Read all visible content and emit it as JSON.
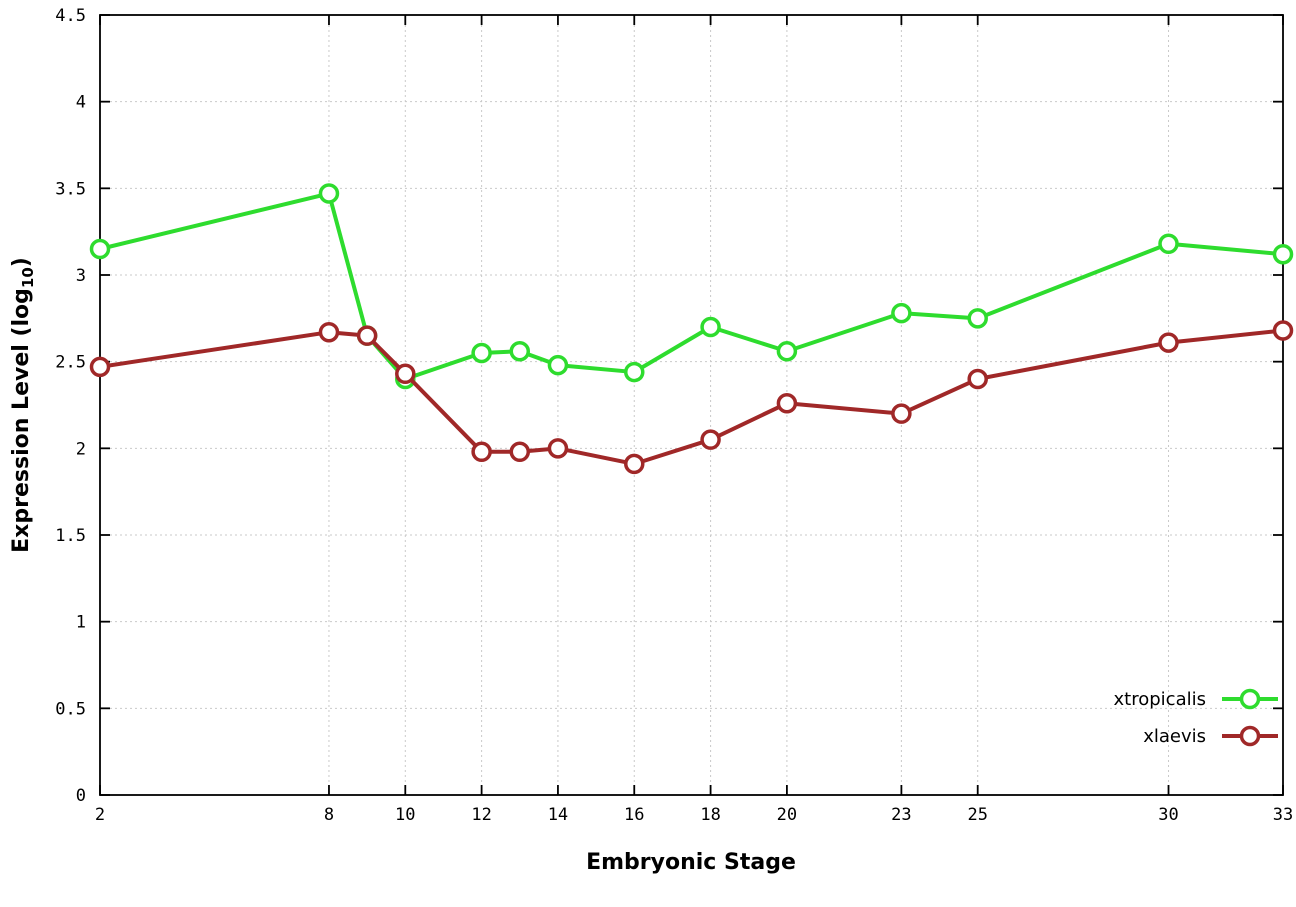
{
  "chart_data": {
    "type": "line",
    "title": "",
    "xlabel": "Embryonic Stage",
    "ylabel": "Expression Level (log10)",
    "ylabel_parts": {
      "prefix": "Expression Level (log",
      "sub": "10",
      "suffix": ")"
    },
    "x": [
      2,
      8,
      9,
      10,
      12,
      13,
      14,
      16,
      18,
      20,
      23,
      25,
      30,
      33
    ],
    "xticks": [
      2,
      8,
      10,
      12,
      14,
      16,
      18,
      20,
      23,
      25,
      30,
      33
    ],
    "yticks": [
      0,
      0.5,
      1,
      1.5,
      2,
      2.5,
      3,
      3.5,
      4,
      4.5
    ],
    "xlim": [
      2,
      33
    ],
    "ylim": [
      0,
      4.5
    ],
    "grid": true,
    "legend_position": "bottom-right-inside",
    "series": [
      {
        "name": "xtropicalis",
        "color": "#2edc2e",
        "marker": "open-circle",
        "values": [
          3.15,
          3.47,
          2.65,
          2.4,
          2.55,
          2.56,
          2.48,
          2.44,
          2.7,
          2.56,
          2.78,
          2.75,
          3.18,
          3.12
        ]
      },
      {
        "name": "xlaevis",
        "color": "#a02828",
        "marker": "open-circle",
        "values": [
          2.47,
          2.67,
          2.65,
          2.43,
          1.98,
          1.98,
          2.0,
          1.91,
          2.05,
          2.26,
          2.2,
          2.4,
          2.61,
          2.68
        ]
      }
    ]
  },
  "style": {
    "grid_color": "#c9c9c9",
    "axis_color": "#000000",
    "background": "#ffffff"
  }
}
